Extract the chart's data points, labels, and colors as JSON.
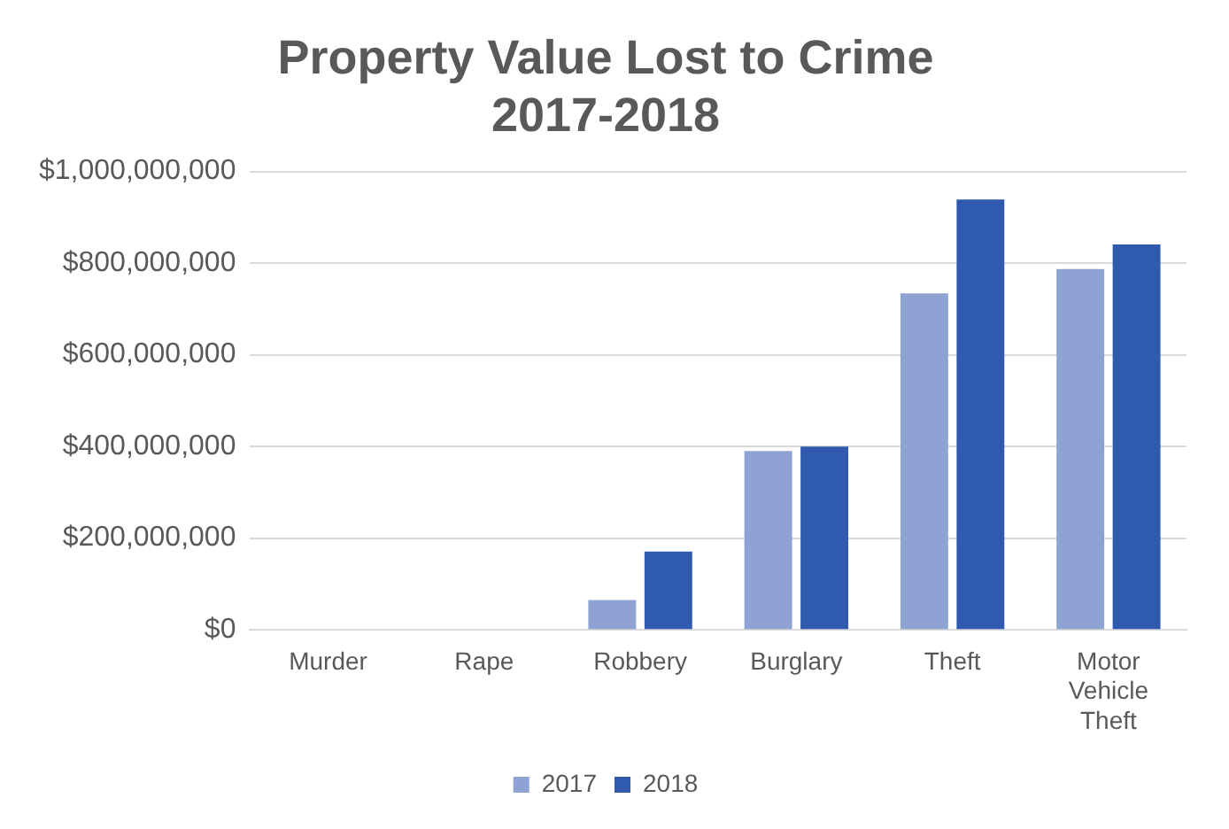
{
  "chart_data": {
    "type": "bar",
    "title": "Property Value Lost to Crime\n2017-2018",
    "categories": [
      "Murder",
      "Rape",
      "Robbery",
      "Burglary",
      "Theft",
      "Motor Vehicle Theft"
    ],
    "series": [
      {
        "name": "2017",
        "color": "#8fa2d4",
        "values": [
          0,
          0,
          65000000,
          390000000,
          734000000,
          787000000
        ]
      },
      {
        "name": "2018",
        "color": "#2f5aae",
        "values": [
          0,
          0,
          171000000,
          400000000,
          939000000,
          841000000
        ]
      }
    ],
    "ylim": [
      0,
      1000000000
    ],
    "yticks": [
      {
        "value": 0,
        "label": "$0"
      },
      {
        "value": 200000000,
        "label": "$200,000,000"
      },
      {
        "value": 400000000,
        "label": "$400,000,000"
      },
      {
        "value": 600000000,
        "label": "$600,000,000"
      },
      {
        "value": 800000000,
        "label": "$800,000,000"
      },
      {
        "value": 1000000000,
        "label": "$1,000,000,000"
      }
    ],
    "grid": "y",
    "legend": "bottom"
  }
}
